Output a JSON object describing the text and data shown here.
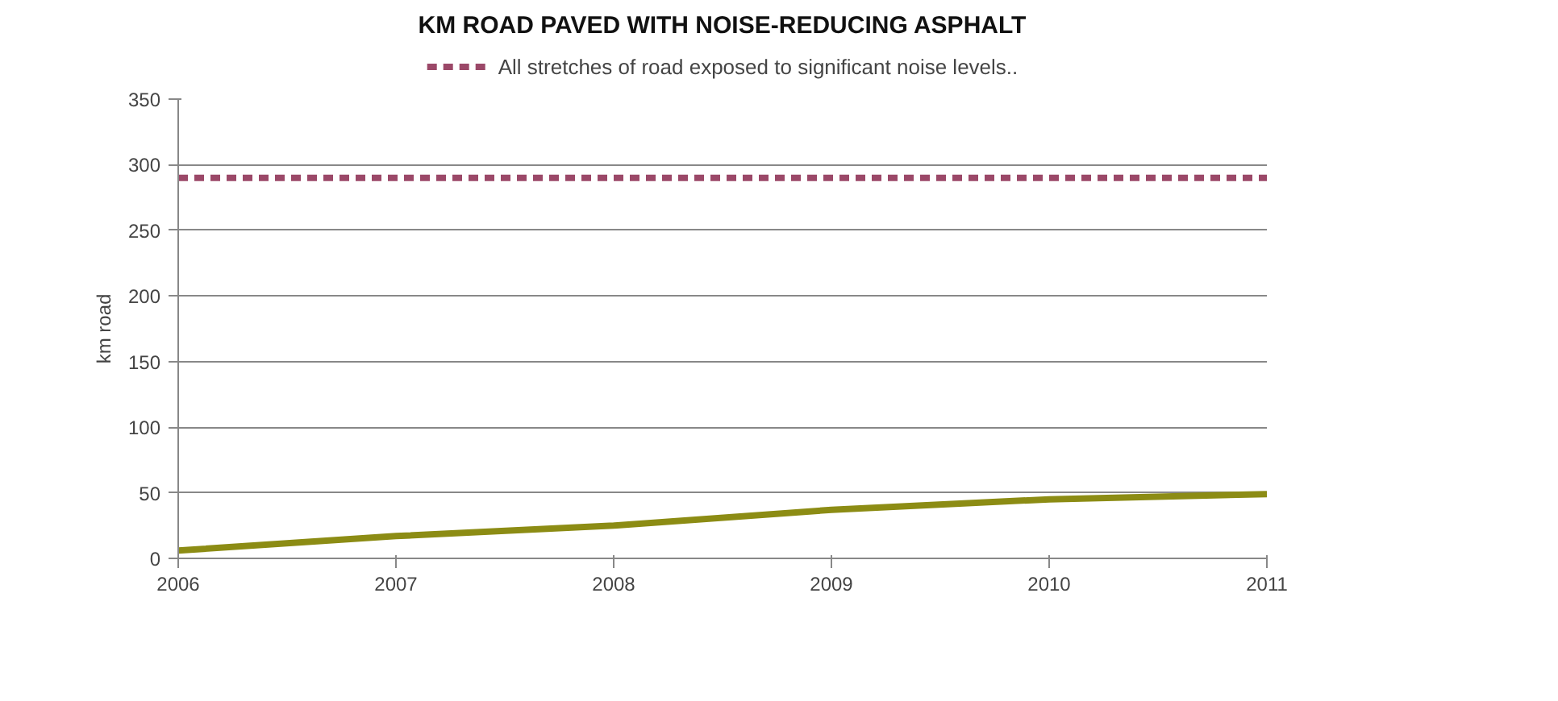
{
  "chart_data": {
    "type": "line",
    "title": "KM ROAD PAVED WITH NOISE-REDUCING ASPHALT",
    "ylabel": "km road",
    "x": [
      2006,
      2007,
      2008,
      2009,
      2010,
      2011
    ],
    "xlim": [
      2006,
      2011
    ],
    "xticks": [
      2006,
      2007,
      2008,
      2009,
      2010,
      2011
    ],
    "ylim": [
      0,
      350
    ],
    "yticks": [
      0,
      50,
      100,
      150,
      200,
      250,
      300,
      350
    ],
    "grid": "y",
    "legend": "top",
    "marker": "none",
    "series": [
      {
        "name": "All stretches of road exposed to significant noise levels..",
        "color": "#9b4868",
        "line_style": "dashed",
        "values": [
          290,
          290,
          290,
          290,
          290,
          290
        ]
      },
      {
        "color": "#8c8c14",
        "line_style": "solid",
        "values": [
          6,
          17,
          25,
          37,
          45,
          49
        ]
      }
    ]
  }
}
